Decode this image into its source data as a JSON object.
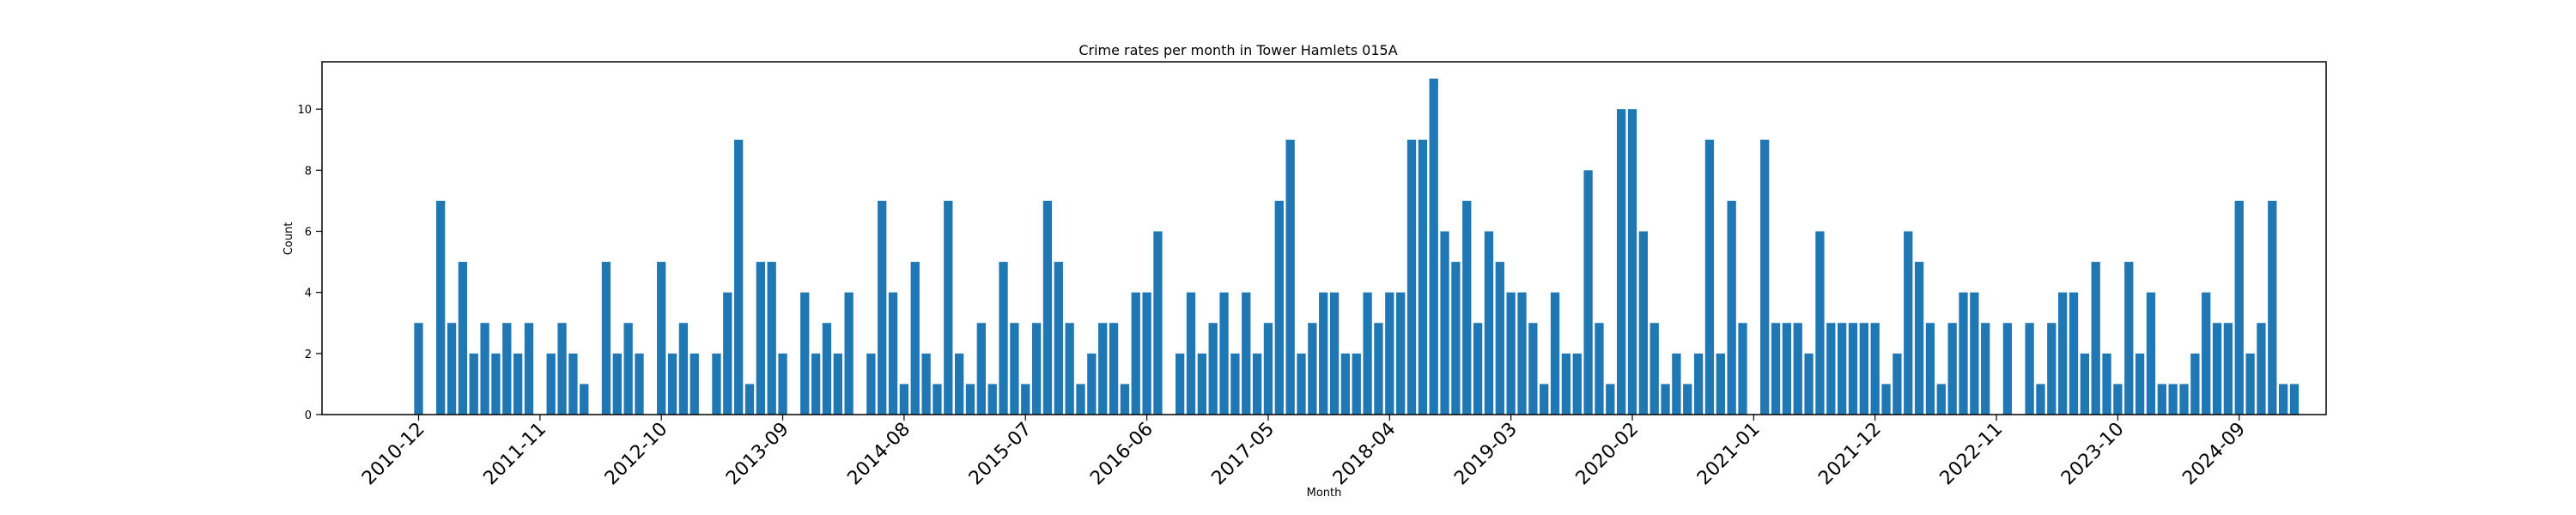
{
  "chart_data": {
    "type": "bar",
    "title": "Crime rates per month in Tower Hamlets 015A",
    "xlabel": "Month",
    "ylabel": "Count",
    "ylim": [
      0,
      11.55
    ],
    "yticks": [
      0,
      2,
      4,
      6,
      8,
      10
    ],
    "xtick_labels": [
      "2010-12",
      "2011-11",
      "2012-10",
      "2013-09",
      "2014-08",
      "2015-07",
      "2016-06",
      "2017-05",
      "2018-04",
      "2019-03",
      "2020-02",
      "2021-01",
      "2021-12",
      "2022-11",
      "2023-10",
      "2024-09"
    ],
    "bar_color": "#1f77b4",
    "grid": false,
    "start_month": "2010-12",
    "values": [
      3,
      0,
      7,
      3,
      5,
      2,
      3,
      2,
      3,
      2,
      3,
      0,
      2,
      3,
      2,
      1,
      0,
      5,
      2,
      3,
      2,
      0,
      5,
      2,
      3,
      2,
      0,
      2,
      4,
      9,
      1,
      5,
      5,
      2,
      0,
      4,
      2,
      3,
      2,
      4,
      0,
      2,
      7,
      4,
      1,
      5,
      2,
      1,
      7,
      2,
      1,
      3,
      1,
      5,
      3,
      1,
      3,
      7,
      5,
      3,
      1,
      2,
      3,
      3,
      1,
      4,
      4,
      6,
      0,
      2,
      4,
      2,
      3,
      4,
      2,
      4,
      2,
      3,
      7,
      9,
      2,
      3,
      4,
      4,
      2,
      2,
      4,
      3,
      4,
      4,
      9,
      9,
      11,
      6,
      5,
      7,
      3,
      6,
      5,
      4,
      4,
      3,
      1,
      4,
      2,
      2,
      8,
      3,
      1,
      10,
      10,
      6,
      3,
      1,
      2,
      1,
      2,
      9,
      2,
      7,
      3,
      0,
      9,
      3,
      3,
      3,
      2,
      6,
      3,
      3,
      3,
      3,
      3,
      1,
      2,
      6,
      5,
      3,
      1,
      3,
      4,
      4,
      3,
      0,
      3,
      0,
      3,
      1,
      3,
      4,
      4,
      2,
      5,
      2,
      1,
      5,
      2,
      4,
      1,
      1,
      1,
      2,
      4,
      3,
      3,
      7,
      2,
      3,
      7,
      1,
      1
    ]
  }
}
